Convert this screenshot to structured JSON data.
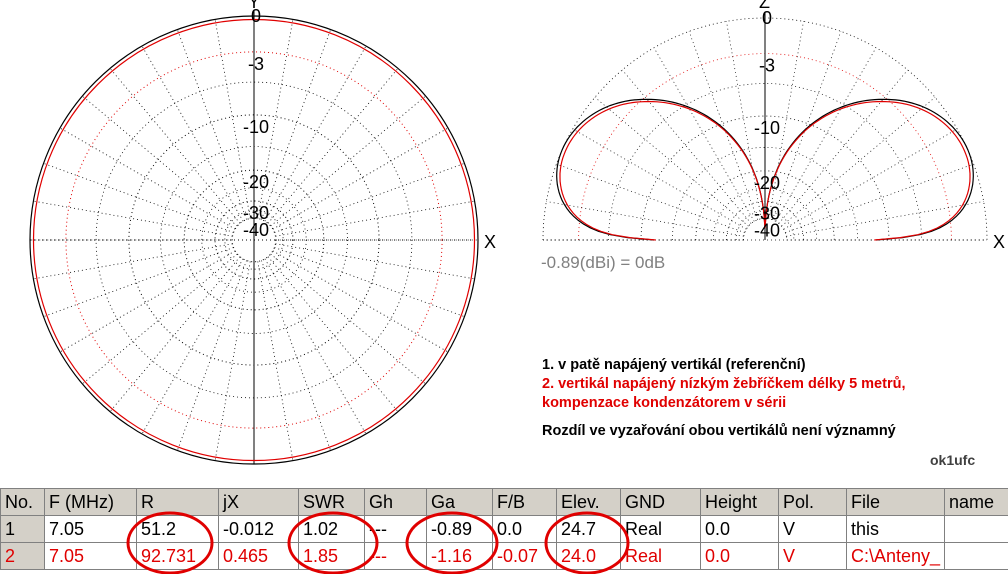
{
  "chart_data": [
    {
      "type": "polar",
      "view": "azimuth",
      "axis_labels": {
        "x": "X",
        "y": "Y"
      },
      "ring_labels": [
        "0",
        "-3",
        "-10",
        "-20",
        "-30",
        "-40"
      ],
      "ring_db": [
        0,
        -3,
        -10,
        -20,
        -30,
        -40
      ],
      "series": [
        {
          "color": "#000000",
          "shape": "omnidirectional",
          "level_db": 0.0
        },
        {
          "color": "#e00000",
          "shape": "omnidirectional",
          "level_db": -0.27
        }
      ]
    },
    {
      "type": "polar",
      "view": "elevation",
      "axis_labels": {
        "x": "X",
        "z": "Z"
      },
      "ring_labels": [
        "0",
        "-3",
        "-10",
        "-20",
        "-30",
        "-40"
      ],
      "ring_db": [
        0,
        -3,
        -10,
        -20,
        -30,
        -40
      ],
      "reference_label": "-0.89(dBi) = 0dB",
      "series": [
        {
          "color": "#000000",
          "peak_elevation_deg": 24.7,
          "peak_db": 0.0
        },
        {
          "color": "#e00000",
          "peak_elevation_deg": 24.0,
          "peak_db": -0.27
        }
      ]
    }
  ],
  "notes": {
    "line1": "1. v patě napájený vertikál (referenční)",
    "line2": "2. vertikál napájený nízkým žebříčkem délky 5 metrů,",
    "line3": "kompenzace kondenzátorem v sérii",
    "line4": "Rozdíl ve vyzařování obou vertikálů není významný"
  },
  "author": "ok1ufc",
  "table": {
    "headers": [
      "No.",
      "F (MHz)",
      "R",
      "jX",
      "SWR",
      "Gh",
      "Ga",
      "F/B",
      "Elev.",
      "GND",
      "Height",
      "Pol.",
      "File",
      "name"
    ],
    "rows": [
      [
        "1",
        "7.05",
        "51.2",
        "-0.012",
        "1.02",
        "---",
        "-0.89",
        "0.0",
        "24.7",
        "Real",
        "0.0",
        "V",
        "this",
        ""
      ],
      [
        "2",
        "7.05",
        "92.731",
        "0.465",
        "1.85",
        "---",
        "-1.16",
        "-0.07",
        "24.0",
        "Real",
        "0.0",
        "V",
        "C:\\Anteny_",
        ""
      ]
    ]
  },
  "colors": {
    "series1": "#000000",
    "series2": "#e00000",
    "highlight_oval": "#e00000",
    "header_bg": "#d4d0c8"
  }
}
